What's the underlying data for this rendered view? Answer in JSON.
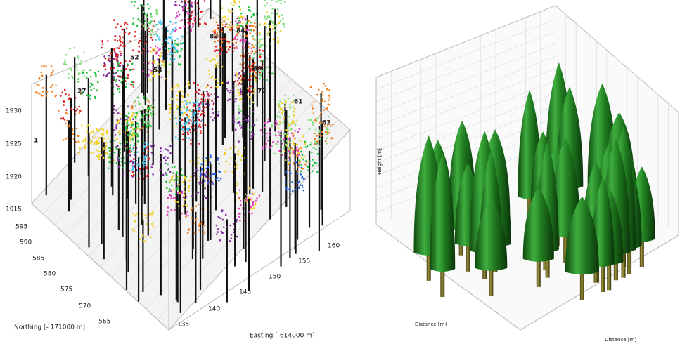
{
  "left_panel": {
    "z_ticks": [
      "1930",
      "1925",
      "1920",
      "1915"
    ],
    "northing_ticks": [
      "595",
      "590",
      "585",
      "580",
      "575",
      "570",
      "565"
    ],
    "easting_ticks": [
      "135",
      "140",
      "145",
      "150",
      "155",
      "160"
    ],
    "northing_label": "Northing [- 171000 m]",
    "easting_label": "Easting [-614000 m]",
    "tree_ids": [
      "1",
      "27",
      "52",
      "53",
      "83",
      "84",
      "61",
      "62",
      "77",
      "89"
    ]
  },
  "right_panel": {
    "height_label": "Height [m]",
    "distance_label_left": "Distance [m]",
    "distance_label_right": "Distance [m]"
  }
}
